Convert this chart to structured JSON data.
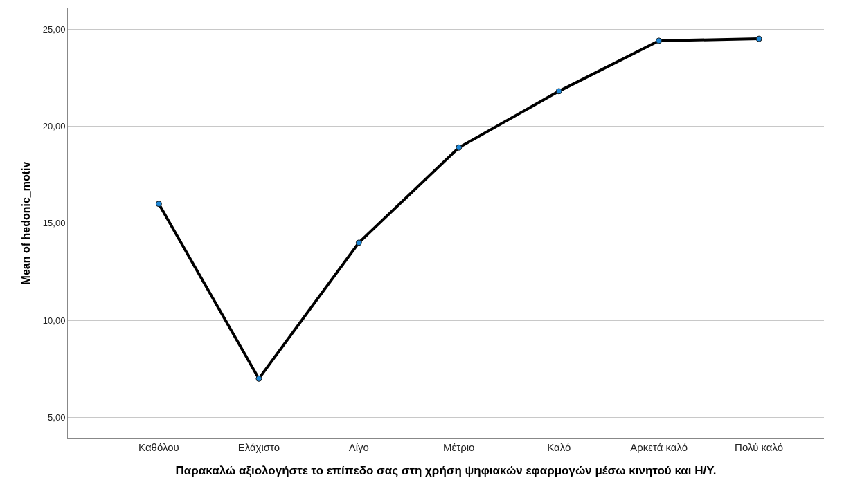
{
  "chart_data": {
    "type": "line",
    "xlabel": "Παρακαλώ αξιολογήστε το επίπεδο σας στη χρήση ψηφιακών εφαρμογών μέσω κινητού και Η/Υ.",
    "ylabel": "Mean of hedonic_motiv",
    "categories": [
      "Καθόλου",
      "Ελάχιστο",
      "Λίγο",
      "Μέτριο",
      "Καλό",
      "Αρκετά καλό",
      "Πολύ καλό"
    ],
    "series": [
      {
        "color": "#000000",
        "colors": [
          "#1e88d8",
          "#1e88d8",
          "#1e88d8",
          "#1e88d8",
          "#1e88d8",
          "#1e88d8",
          "#1e88d8"
        ],
        "values": [
          16.0,
          7.0,
          14.0,
          18.9,
          21.8,
          24.4,
          24.5
        ]
      }
    ],
    "ylim": [
      3.95,
      26.07
    ],
    "yticks": [
      {
        "value": 5,
        "label": "5,00"
      },
      {
        "value": 10,
        "label": "10,00"
      },
      {
        "value": 15,
        "label": "15,00"
      },
      {
        "value": 20,
        "label": "20,00"
      },
      {
        "value": 25,
        "label": "25,00"
      }
    ],
    "grid": "y",
    "marker": "circle",
    "line_style": "solid"
  }
}
